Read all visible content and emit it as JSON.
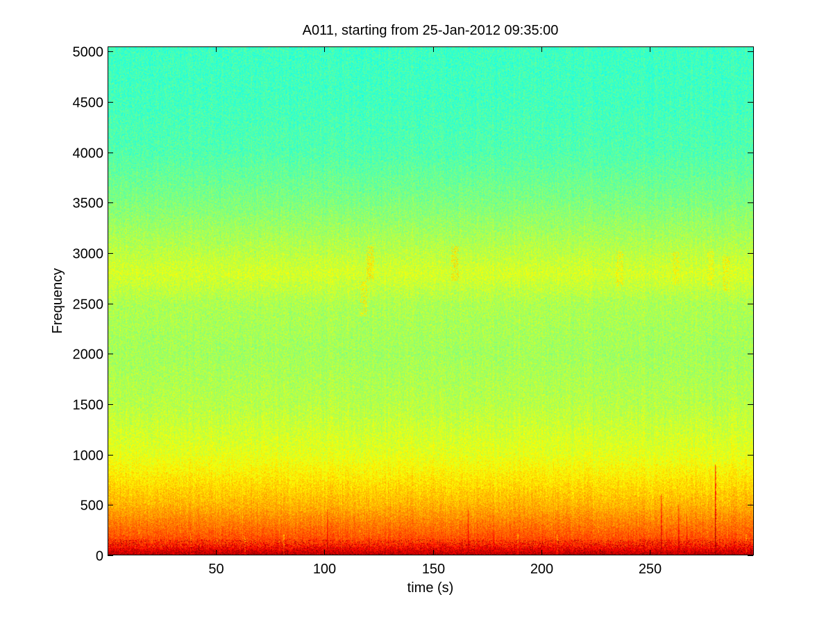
{
  "chart_data": {
    "type": "heatmap",
    "title": "A011, starting from 25-Jan-2012 09:35:00",
    "xlabel": "time (s)",
    "ylabel": "Frequency",
    "xlim": [
      0,
      298
    ],
    "ylim": [
      0,
      5050
    ],
    "xticks": [
      50,
      100,
      150,
      200,
      250
    ],
    "yticks": [
      0,
      500,
      1000,
      1500,
      2000,
      2500,
      3000,
      3500,
      4000,
      4500,
      5000
    ],
    "colormap": [
      "#00008f",
      "#0000ff",
      "#00ffff",
      "#ffff00",
      "#ff0000",
      "#800000"
    ],
    "power_profile": [
      {
        "frequency": 0,
        "level": 0.95
      },
      {
        "frequency": 100,
        "level": 0.82
      },
      {
        "frequency": 300,
        "level": 0.76
      },
      {
        "frequency": 500,
        "level": 0.7
      },
      {
        "frequency": 800,
        "level": 0.64
      },
      {
        "frequency": 1000,
        "level": 0.6
      },
      {
        "frequency": 1500,
        "level": 0.555
      },
      {
        "frequency": 2000,
        "level": 0.535
      },
      {
        "frequency": 2500,
        "level": 0.545
      },
      {
        "frequency": 2800,
        "level": 0.585
      },
      {
        "frequency": 3000,
        "level": 0.56
      },
      {
        "frequency": 3500,
        "level": 0.5
      },
      {
        "frequency": 4000,
        "level": 0.455
      },
      {
        "frequency": 4500,
        "level": 0.44
      },
      {
        "frequency": 5050,
        "level": 0.435
      }
    ],
    "transient_events": [
      {
        "time": 14,
        "max_frequency": 250,
        "level": 0.92
      },
      {
        "time": 38,
        "max_frequency": 220,
        "level": 0.9
      },
      {
        "time": 63,
        "max_frequency": 180,
        "level": 0.88
      },
      {
        "time": 81,
        "max_frequency": 200,
        "level": 0.88
      },
      {
        "time": 101,
        "max_frequency": 450,
        "level": 0.97
      },
      {
        "time": 116,
        "max_frequency": 250,
        "level": 0.92
      },
      {
        "time": 166,
        "max_frequency": 450,
        "level": 0.97
      },
      {
        "time": 178,
        "max_frequency": 400,
        "level": 0.94
      },
      {
        "time": 189,
        "max_frequency": 200,
        "level": 0.9
      },
      {
        "time": 207,
        "max_frequency": 200,
        "level": 0.9
      },
      {
        "time": 226,
        "max_frequency": 300,
        "level": 0.92
      },
      {
        "time": 240,
        "max_frequency": 350,
        "level": 0.93
      },
      {
        "time": 255,
        "max_frequency": 600,
        "level": 0.97
      },
      {
        "time": 263,
        "max_frequency": 500,
        "level": 0.96
      },
      {
        "time": 267,
        "max_frequency": 400,
        "level": 0.95
      },
      {
        "time": 280,
        "max_frequency": 900,
        "level": 0.99
      },
      {
        "time": 294,
        "max_frequency": 200,
        "level": 0.9
      }
    ],
    "high_band_bursts": [
      {
        "time": 121,
        "frequency": 2900,
        "level": 0.66
      },
      {
        "time": 160,
        "frequency": 2900,
        "level": 0.66
      },
      {
        "time": 118,
        "frequency": 2550,
        "level": 0.64
      },
      {
        "time": 236,
        "frequency": 2850,
        "level": 0.64
      },
      {
        "time": 262,
        "frequency": 2850,
        "level": 0.64
      },
      {
        "time": 278,
        "frequency": 2850,
        "level": 0.63
      },
      {
        "time": 285,
        "frequency": 2800,
        "level": 0.64
      }
    ],
    "grid": false
  }
}
